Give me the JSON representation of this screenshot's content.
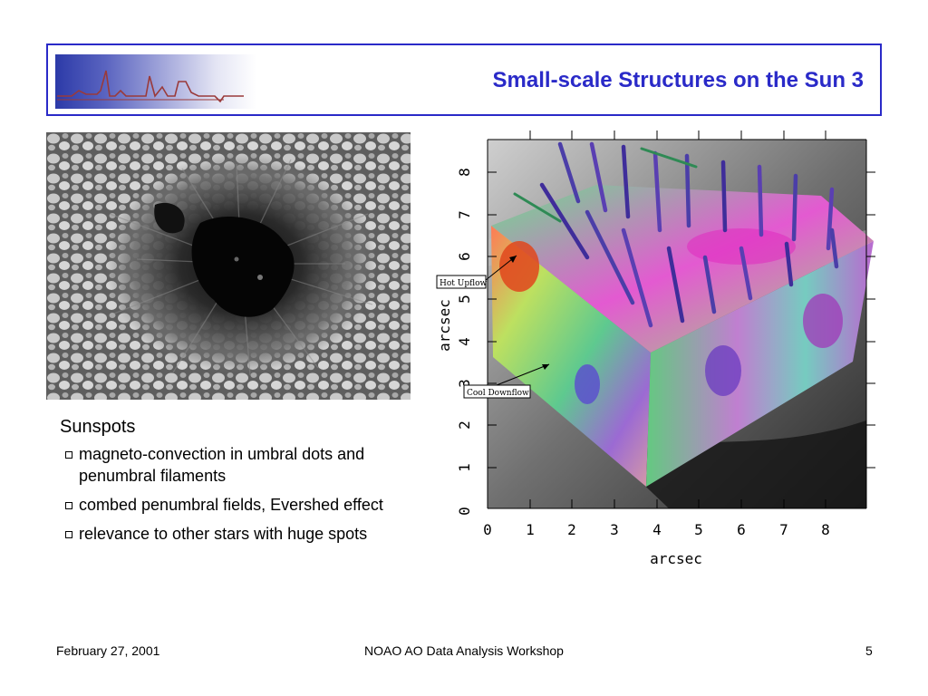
{
  "header": {
    "title": "Small-scale Structures on the Sun 3"
  },
  "colors": {
    "title": "#2a2ac8",
    "border": "#2a2ac8",
    "logo_line": "#9a3a3a"
  },
  "sunspot_image": {
    "icon": "sunspot-photo"
  },
  "text": {
    "heading": "Sunspots",
    "bullets": [
      "magneto-convection in umbral dots and penumbral filaments",
      "combed penumbral fields, Evershed effect",
      "relevance to other stars with huge spots"
    ]
  },
  "plot": {
    "xlabel": "arcsec",
    "ylabel": "arcsec",
    "xticks": [
      "0",
      "1",
      "2",
      "3",
      "4",
      "5",
      "6",
      "7",
      "8"
    ],
    "yticks": [
      "0",
      "1",
      "2",
      "3",
      "4",
      "5",
      "6",
      "7",
      "8"
    ],
    "annotations": {
      "hot": "Hot Upflow",
      "cool": "Cool Downflow"
    }
  },
  "footer": {
    "date": "February 27, 2001",
    "center": "NOAO AO Data Analysis Workshop",
    "page": "5"
  }
}
